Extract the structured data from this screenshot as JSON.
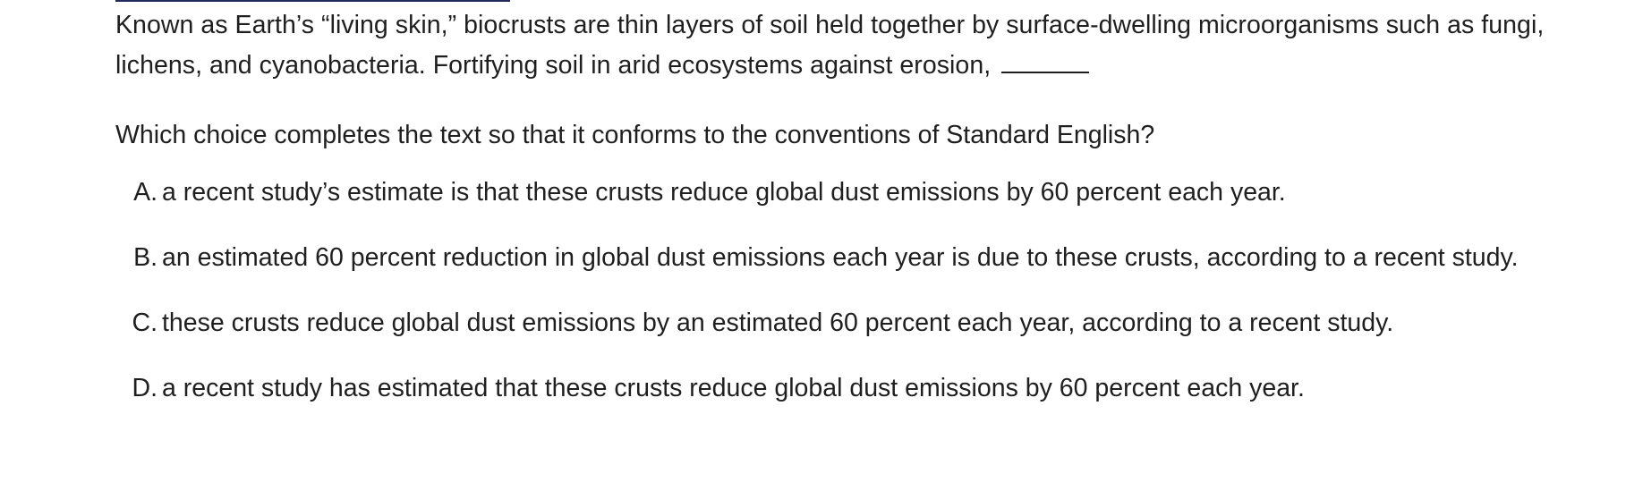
{
  "passage": {
    "text": "Known as Earth’s “living skin,” biocrusts are thin layers of soil held together by surface-dwelling microorganisms such as fungi, lichens, and cyanobacteria. Fortifying soil in arid ecosystems against erosion,"
  },
  "question": {
    "text": "Which choice completes the text so that it conforms to the conventions of Standard English?"
  },
  "choices": [
    {
      "letter": "A.",
      "text": "a recent study’s estimate is that these crusts reduce global dust emissions by 60 percent each year."
    },
    {
      "letter": "B.",
      "text": "an estimated 60 percent reduction in global dust emissions each year is due to these crusts, according to a recent study."
    },
    {
      "letter": "C.",
      "text": "these crusts reduce global dust emissions by an estimated 60 percent each year, according to a recent study."
    },
    {
      "letter": "D.",
      "text": "a recent study has estimated that these crusts reduce global dust emissions by 60 percent each year."
    }
  ],
  "colors": {
    "text": "#1f1f1f",
    "top_rule": "#1f2a5a",
    "background": "#ffffff"
  }
}
